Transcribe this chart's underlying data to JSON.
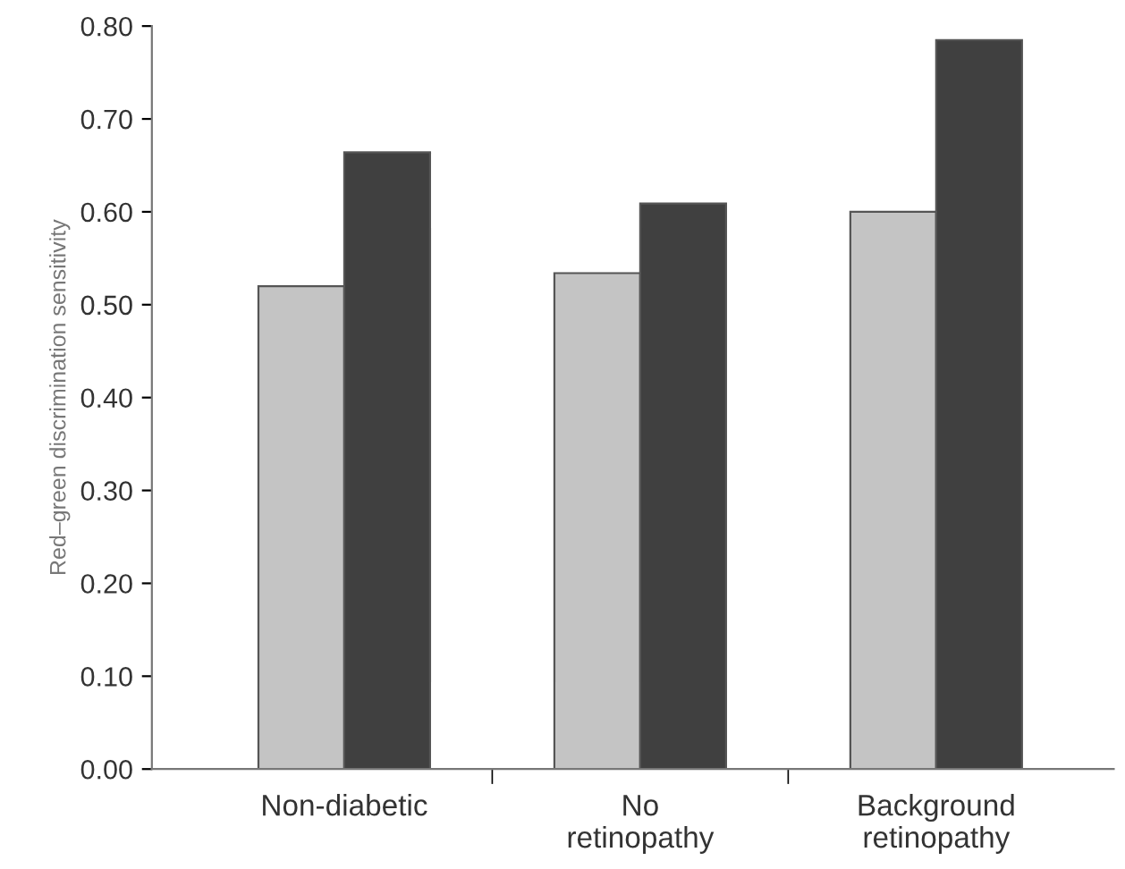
{
  "chart_data": {
    "type": "bar",
    "ylabel": "Red–green discrimination sensitivity",
    "categories": [
      "Non-diabetic",
      "No\nretinopathy",
      "Background\nretinopathy"
    ],
    "series": [
      {
        "color": "#c4c4c4",
        "values": [
          0.52,
          0.534,
          0.6
        ]
      },
      {
        "color": "#404040",
        "values": [
          0.664,
          0.609,
          0.785
        ]
      }
    ],
    "ylim": [
      0,
      0.8
    ],
    "yticks": [
      {
        "value": 0,
        "label": "0.00"
      },
      {
        "value": 0.1,
        "label": "0.10"
      },
      {
        "value": 0.2,
        "label": "0.20"
      },
      {
        "value": 0.3,
        "label": "0.30"
      },
      {
        "value": 0.4,
        "label": "0.40"
      },
      {
        "value": 0.5,
        "label": "0.50"
      },
      {
        "value": 0.6,
        "label": "0.60"
      },
      {
        "value": 0.7,
        "label": "0.70"
      },
      {
        "value": 0.8,
        "label": "0.80"
      }
    ],
    "grid": false,
    "legend": false
  }
}
